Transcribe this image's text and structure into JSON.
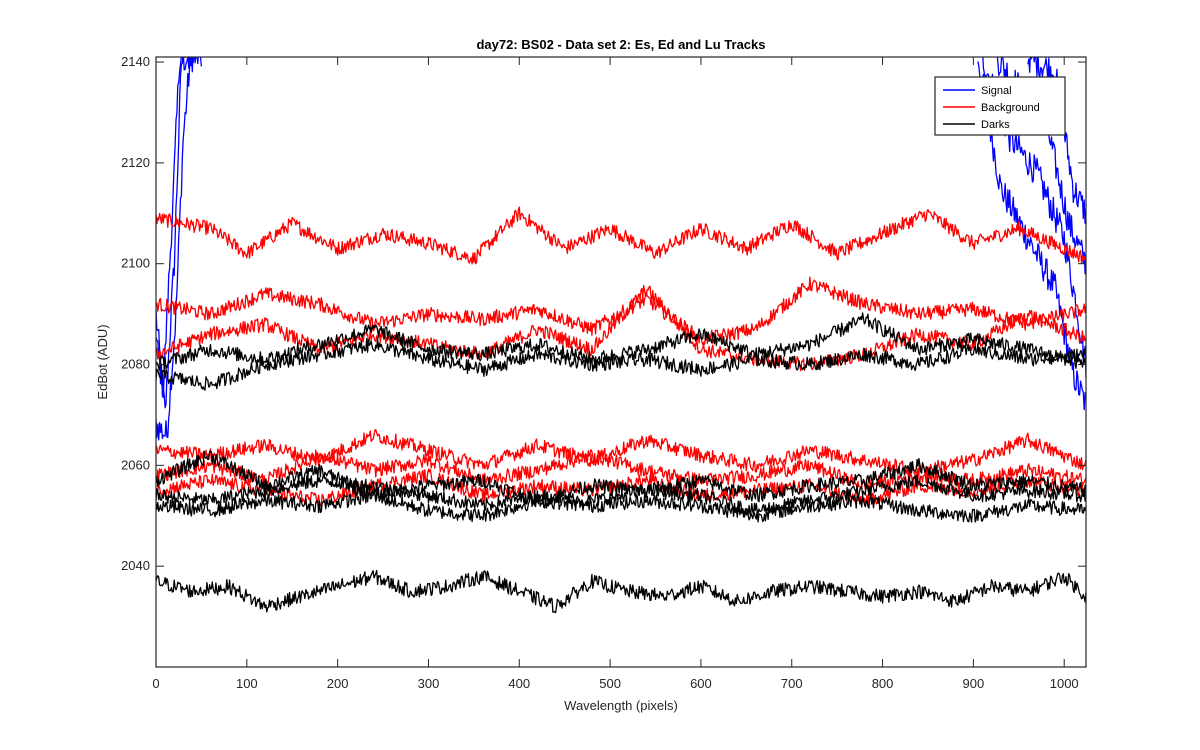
{
  "chart_data": {
    "type": "line",
    "title": "day72: BS02 - Data set 2: Es, Ed and Lu Tracks",
    "xlabel": "Wavelength (pixels)",
    "ylabel": "EdBot (ADU)",
    "xlim": [
      0,
      1024
    ],
    "ylim": [
      2020,
      2141
    ],
    "xticks": [
      0,
      100,
      200,
      300,
      400,
      500,
      600,
      700,
      800,
      900,
      1000
    ],
    "yticks": [
      2040,
      2060,
      2080,
      2100,
      2120,
      2140
    ],
    "grid": false,
    "legend_position": "top-right",
    "legend": [
      {
        "label": "Signal",
        "color": "#0000ff"
      },
      {
        "label": "Background",
        "color": "#ff0000"
      },
      {
        "label": "Darks",
        "color": "#000000"
      }
    ],
    "series": [
      {
        "name": "Signal",
        "color": "#0000ff",
        "x": [
          0,
          10,
          20,
          28,
          35,
          45
        ],
        "y": [
          2090,
          2070,
          2100,
          2140,
          2141,
          2141
        ]
      },
      {
        "name": "Signal",
        "color": "#0000ff",
        "x": [
          0,
          12,
          22,
          30,
          38,
          50
        ],
        "y": [
          2068,
          2066,
          2090,
          2125,
          2141,
          2141
        ]
      },
      {
        "name": "Signal",
        "color": "#0000ff",
        "x": [
          0,
          8,
          18,
          26,
          34,
          42
        ],
        "y": [
          2085,
          2075,
          2110,
          2141,
          2141,
          2141
        ]
      },
      {
        "name": "Signal",
        "color": "#0000ff",
        "x": [
          905,
          930,
          960,
          990,
          1010,
          1024
        ],
        "y": [
          2141,
          2115,
          2105,
          2095,
          2078,
          2072
        ]
      },
      {
        "name": "Signal",
        "color": "#0000ff",
        "x": [
          910,
          940,
          970,
          1000,
          1015,
          1024
        ],
        "y": [
          2141,
          2125,
          2118,
          2105,
          2090,
          2080
        ]
      },
      {
        "name": "Signal",
        "color": "#0000ff",
        "x": [
          925,
          950,
          980,
          1005,
          1024
        ],
        "y": [
          2141,
          2135,
          2128,
          2108,
          2100
        ]
      },
      {
        "name": "Signal",
        "color": "#0000ff",
        "x": [
          960,
          990,
          1010,
          1024
        ],
        "y": [
          2141,
          2138,
          2115,
          2110
        ]
      },
      {
        "name": "Background",
        "color": "#ff0000",
        "x": [
          0,
          60,
          100,
          150,
          200,
          250,
          300,
          350,
          400,
          450,
          500,
          550,
          600,
          650,
          700,
          750,
          800,
          850,
          900,
          950,
          1000,
          1024
        ],
        "y": [
          2109,
          2107,
          2102,
          2108,
          2103,
          2106,
          2104,
          2101,
          2110,
          2103,
          2107,
          2102,
          2107,
          2103,
          2108,
          2102,
          2106,
          2110,
          2104,
          2107,
          2103,
          2101
        ]
      },
      {
        "name": "Background",
        "color": "#ff0000",
        "x": [
          0,
          60,
          120,
          180,
          240,
          300,
          360,
          420,
          480,
          540,
          600,
          660,
          720,
          780,
          840,
          900,
          960,
          1024
        ],
        "y": [
          2092,
          2090,
          2094,
          2092,
          2088,
          2090,
          2089,
          2091,
          2087,
          2093,
          2085,
          2087,
          2096,
          2092,
          2090,
          2091,
          2088,
          2091
        ]
      },
      {
        "name": "Background",
        "color": "#ff0000",
        "x": [
          0,
          60,
          120,
          180,
          240,
          300,
          360,
          420,
          480,
          540,
          600,
          660,
          720,
          780,
          840,
          900,
          960,
          1024
        ],
        "y": [
          2082,
          2086,
          2088,
          2083,
          2086,
          2084,
          2082,
          2087,
          2083,
          2095,
          2083,
          2081,
          2080,
          2082,
          2086,
          2084,
          2090,
          2085
        ]
      },
      {
        "name": "Background",
        "color": "#ff0000",
        "x": [
          0,
          60,
          120,
          180,
          240,
          300,
          360,
          420,
          480,
          540,
          600,
          660,
          720,
          780,
          840,
          900,
          960,
          1024
        ],
        "y": [
          2063,
          2062,
          2064,
          2061,
          2066,
          2063,
          2060,
          2064,
          2061,
          2065,
          2062,
          2060,
          2063,
          2061,
          2059,
          2061,
          2065,
          2060
        ]
      },
      {
        "name": "Background",
        "color": "#ff0000",
        "x": [
          0,
          60,
          120,
          180,
          240,
          300,
          360,
          420,
          480,
          540,
          600,
          660,
          720,
          780,
          840,
          900,
          960,
          1024
        ],
        "y": [
          2058,
          2060,
          2057,
          2062,
          2059,
          2061,
          2057,
          2059,
          2062,
          2059,
          2057,
          2058,
          2060,
          2056,
          2058,
          2057,
          2059,
          2057
        ]
      },
      {
        "name": "Background",
        "color": "#ff0000",
        "x": [
          0,
          60,
          120,
          180,
          240,
          300,
          360,
          420,
          480,
          540,
          600,
          660,
          720,
          780,
          840,
          900,
          960,
          1024
        ],
        "y": [
          2055,
          2057,
          2055,
          2053,
          2056,
          2058,
          2054,
          2056,
          2055,
          2057,
          2054,
          2055,
          2056,
          2053,
          2056,
          2055,
          2057,
          2055
        ]
      },
      {
        "name": "Darks",
        "color": "#000000",
        "x": [
          0,
          60,
          120,
          180,
          240,
          300,
          360,
          420,
          480,
          540,
          600,
          660,
          720,
          780,
          840,
          900,
          960,
          1024
        ],
        "y": [
          2080,
          2083,
          2081,
          2084,
          2087,
          2083,
          2082,
          2084,
          2081,
          2083,
          2086,
          2082,
          2084,
          2089,
          2083,
          2085,
          2083,
          2080
        ]
      },
      {
        "name": "Darks",
        "color": "#000000",
        "x": [
          0,
          60,
          120,
          180,
          240,
          300,
          360,
          420,
          480,
          540,
          600,
          660,
          720,
          780,
          840,
          900,
          960,
          1024
        ],
        "y": [
          2078,
          2076,
          2080,
          2082,
          2084,
          2081,
          2079,
          2082,
          2080,
          2081,
          2079,
          2081,
          2080,
          2082,
          2080,
          2083,
          2081,
          2082
        ]
      },
      {
        "name": "Darks",
        "color": "#000000",
        "x": [
          0,
          60,
          120,
          180,
          240,
          300,
          360,
          420,
          480,
          540,
          600,
          660,
          720,
          780,
          840,
          900,
          960,
          1024
        ],
        "y": [
          2057,
          2062,
          2056,
          2059,
          2054,
          2056,
          2057,
          2053,
          2056,
          2055,
          2057,
          2054,
          2056,
          2057,
          2060,
          2056,
          2057,
          2055
        ]
      },
      {
        "name": "Darks",
        "color": "#000000",
        "x": [
          0,
          60,
          120,
          180,
          240,
          300,
          360,
          420,
          480,
          540,
          600,
          660,
          720,
          780,
          840,
          900,
          960,
          1024
        ],
        "y": [
          2054,
          2053,
          2055,
          2057,
          2056,
          2054,
          2052,
          2054,
          2053,
          2055,
          2054,
          2051,
          2053,
          2055,
          2057,
          2054,
          2055,
          2054
        ]
      },
      {
        "name": "Darks",
        "color": "#000000",
        "x": [
          0,
          60,
          120,
          180,
          240,
          300,
          360,
          420,
          480,
          540,
          600,
          660,
          720,
          780,
          840,
          900,
          960,
          1024
        ],
        "y": [
          2052,
          2051,
          2053,
          2052,
          2054,
          2051,
          2050,
          2053,
          2052,
          2053,
          2052,
          2050,
          2052,
          2053,
          2051,
          2050,
          2052,
          2051
        ]
      },
      {
        "name": "Darks",
        "color": "#000000",
        "x": [
          0,
          40,
          80,
          120,
          160,
          200,
          240,
          280,
          320,
          360,
          400,
          440,
          480,
          520,
          560,
          600,
          640,
          680,
          720,
          760,
          800,
          840,
          880,
          920,
          960,
          1000,
          1024
        ],
        "y": [
          2037,
          2035,
          2036,
          2032,
          2034,
          2036,
          2038,
          2035,
          2036,
          2038,
          2035,
          2032,
          2037,
          2035,
          2034,
          2036,
          2033,
          2035,
          2036,
          2035,
          2034,
          2035,
          2033,
          2036,
          2035,
          2038,
          2034
        ]
      }
    ]
  }
}
